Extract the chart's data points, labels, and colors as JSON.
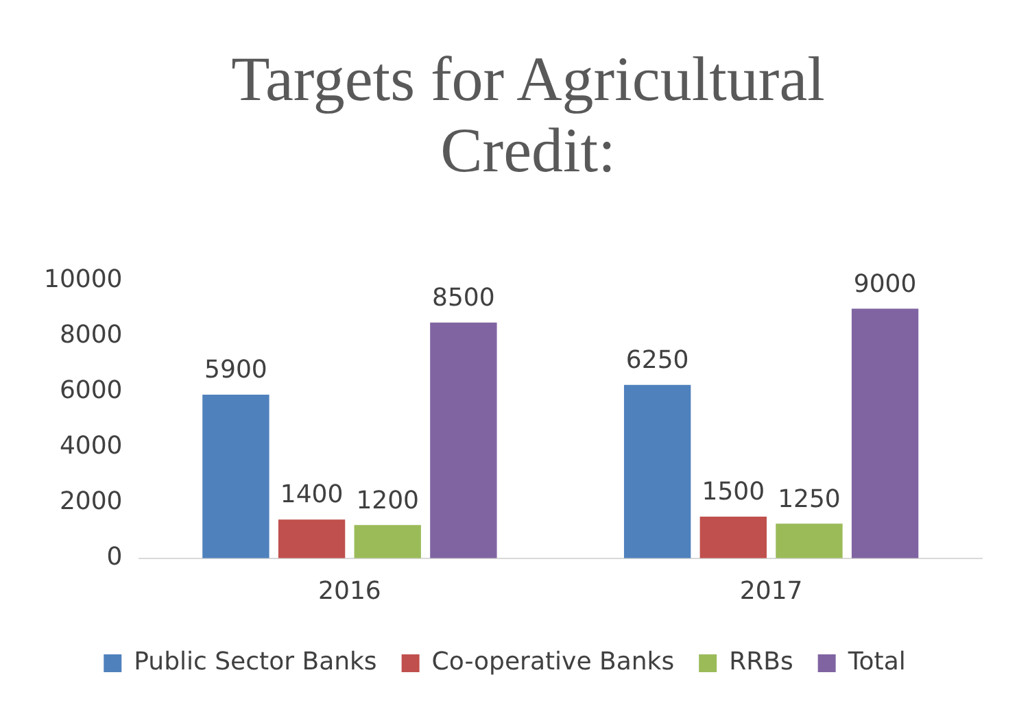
{
  "chart_data": {
    "type": "bar",
    "title": "Targets for Agricultural Credit:",
    "categories": [
      "2016",
      "2017"
    ],
    "series": [
      {
        "name": "Public Sector Banks",
        "color": "#4f81bd",
        "values": [
          5900,
          6250
        ]
      },
      {
        "name": "Co-operative Banks",
        "color": "#c0504d",
        "values": [
          1400,
          1500
        ]
      },
      {
        "name": "RRBs",
        "color": "#9bbb59",
        "values": [
          1200,
          1250
        ]
      },
      {
        "name": "Total",
        "color": "#8064a2",
        "values": [
          8500,
          9000
        ]
      }
    ],
    "ylim": [
      0,
      10000
    ],
    "yticks": [
      0,
      2000,
      4000,
      6000,
      8000,
      10000
    ],
    "grid": false,
    "legend": "bottom",
    "data_labels": true
  }
}
